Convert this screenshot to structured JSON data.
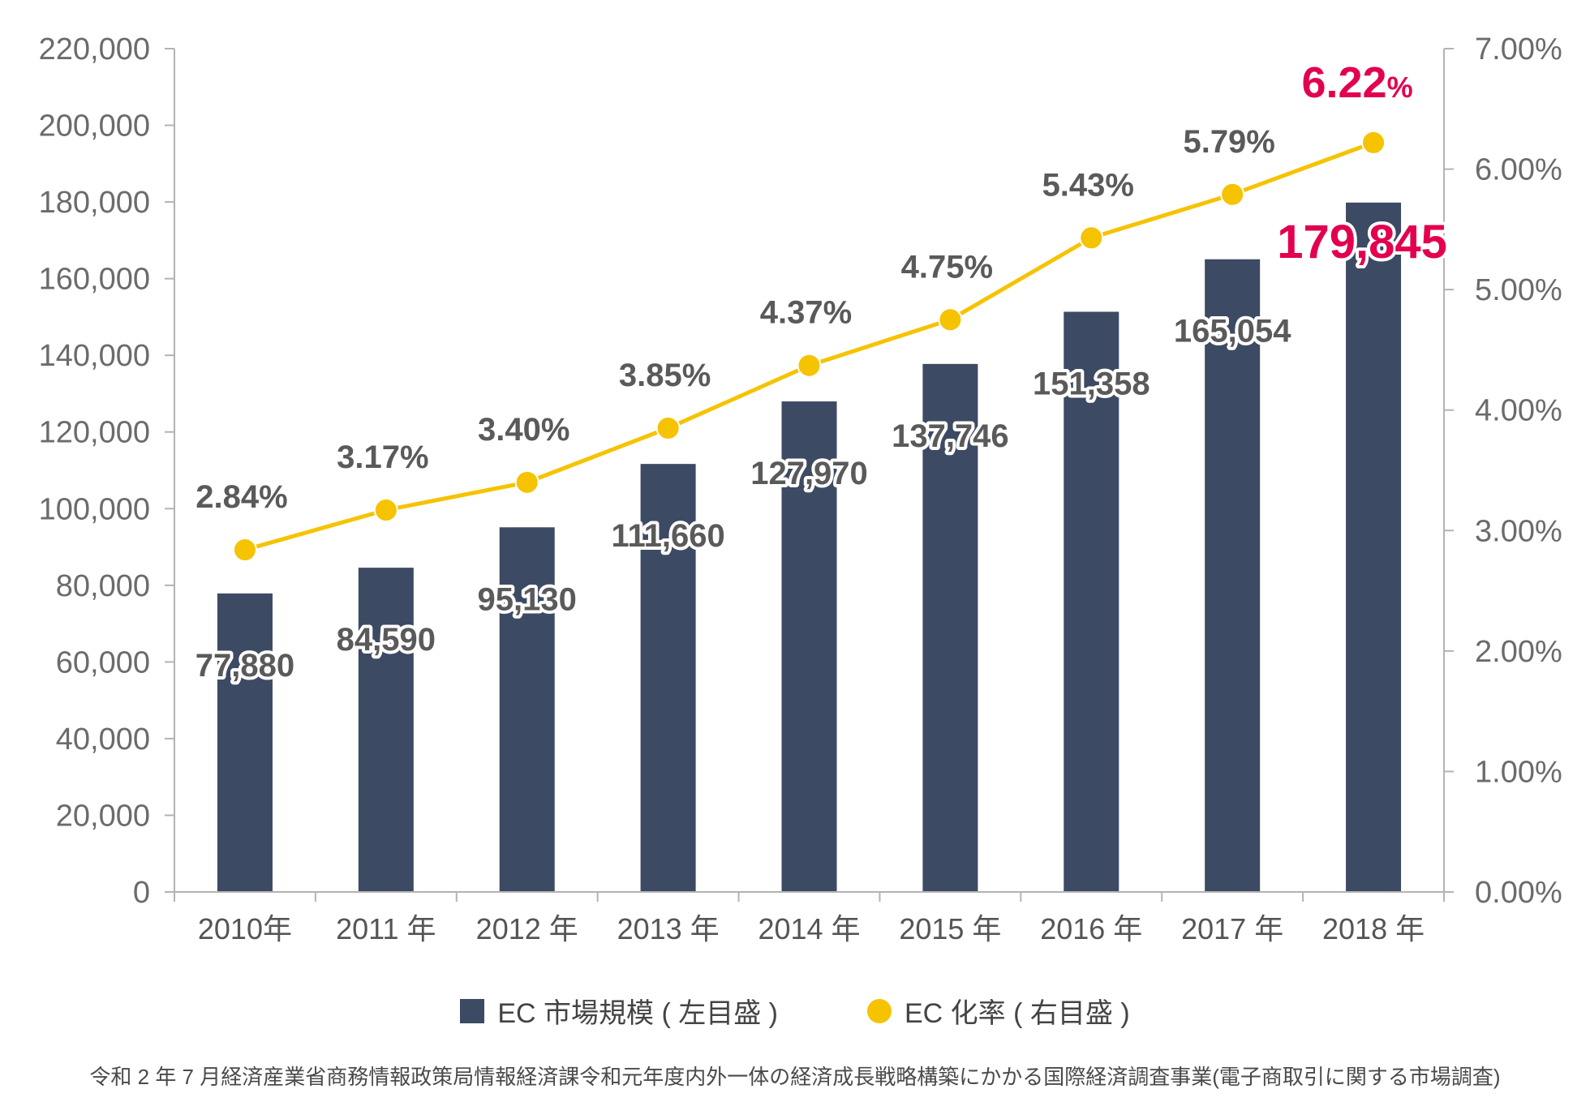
{
  "colors": {
    "bar": "#3d4a63",
    "line": "#f6c300",
    "highlight": "#e2004f",
    "label": "#5a5a5a"
  },
  "chart_data": {
    "type": "bar+line",
    "categories": [
      "2010年",
      "2011 年",
      "2012 年",
      "2013 年",
      "2014 年",
      "2015 年",
      "2016 年",
      "2017 年",
      "2018 年"
    ],
    "series": [
      {
        "name": "EC 市場規模 ( 左目盛 )",
        "type": "bar",
        "axis": "left",
        "values": [
          77880,
          84590,
          95130,
          111660,
          127970,
          137746,
          151358,
          165054,
          179845
        ],
        "labels": [
          "77,880",
          "84,590",
          "95,130",
          "111,660",
          "127,970",
          "137,746",
          "151,358",
          "165,054",
          "179,845"
        ]
      },
      {
        "name": "EC 化率 ( 右目盛 )",
        "type": "line",
        "axis": "right",
        "values": [
          2.84,
          3.17,
          3.4,
          3.85,
          4.37,
          4.75,
          5.43,
          5.79,
          6.22
        ],
        "labels": [
          "2.84%",
          "3.17%",
          "3.40%",
          "3.85%",
          "4.37%",
          "4.75%",
          "5.43%",
          "5.79%",
          "6.22"
        ]
      }
    ],
    "highlight_index": 8,
    "highlight_pct_suffix": "%",
    "left_axis": {
      "range": [
        0,
        220000
      ],
      "ticks": [
        "0",
        "20,000",
        "40,000",
        "60,000",
        "80,000",
        "100,000",
        "120,000",
        "140,000",
        "160,000",
        "180,000",
        "200,000",
        "220,000"
      ]
    },
    "right_axis": {
      "range": [
        0,
        7
      ],
      "ticks": [
        "0.00%",
        "1.00%",
        "2.00%",
        "3.00%",
        "4.00%",
        "5.00%",
        "6.00%",
        "7.00%"
      ]
    },
    "legend": {
      "bar": "EC 市場規模 ( 左目盛 )",
      "line": "EC 化率 ( 右目盛 )",
      "position": "bottom-center"
    },
    "grid": false
  },
  "source": "令和 2 年 7 月経済産業省商務情報政策局情報経済課令和元年度内外一体の経済成長戦略構築にかかる国際経済調査事業(電子商取引に関する市場調査)"
}
